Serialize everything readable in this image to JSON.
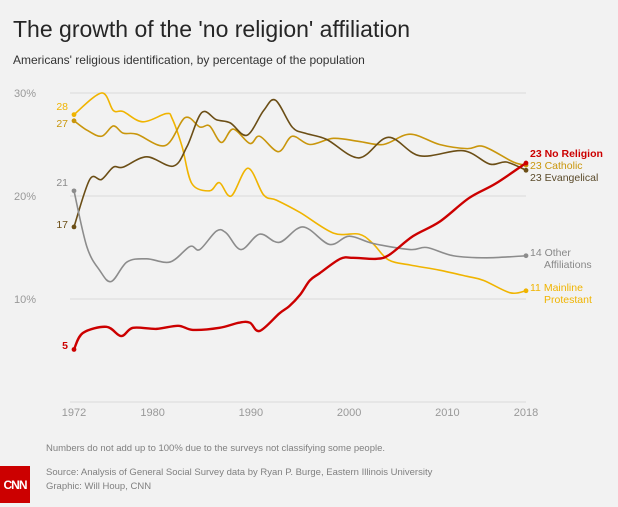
{
  "chart_data": {
    "type": "line",
    "title": "The growth of the 'no religion' affiliation",
    "subtitle": "Americans' religious identification, by percentage of the population",
    "xlabel": "",
    "ylabel": "",
    "xlim": [
      1972,
      2018
    ],
    "ylim": [
      0,
      30
    ],
    "x_ticks": [
      "1972",
      "1980",
      "1990",
      "2000",
      "2010",
      "2018"
    ],
    "x_tick_values": [
      1972,
      1980,
      1990,
      2000,
      2010,
      2018
    ],
    "y_ticks": [
      "30%",
      "20%",
      "10%"
    ],
    "y_tick_values": [
      30,
      20,
      10
    ],
    "grid": true,
    "series": [
      {
        "name": "Mainline Protestant",
        "color": "#f0b400",
        "start_label": "28",
        "end_label": [
          "11 Mainline",
          "Protestant"
        ],
        "x": [
          1972,
          1974.8,
          1976,
          1977,
          1979,
          1981.4,
          1982,
          1983,
          1984,
          1985.8,
          1986.8,
          1988,
          1989.7,
          1991.3,
          1992.6,
          1995,
          1998.4,
          2001,
          2002.4,
          2004,
          2006.2,
          2009.2,
          2012,
          2013.7,
          2016.4,
          2018
        ],
        "y": [
          27.9,
          30.0,
          28.3,
          28.2,
          27.2,
          28.0,
          27.5,
          24.8,
          21.2,
          20.5,
          21.3,
          20.0,
          22.7,
          20.1,
          19.6,
          18.4,
          16.4,
          16.3,
          15.4,
          13.8,
          13.3,
          12.8,
          12.2,
          11.8,
          10.6,
          10.8
        ]
      },
      {
        "name": "Catholic",
        "color": "#c9960c",
        "start_label": "27",
        "end_label": [
          "23 Catholic"
        ],
        "x": [
          1972,
          1973.3,
          1974.8,
          1976,
          1977,
          1978.4,
          1981.3,
          1983.3,
          1984.8,
          1985.8,
          1987,
          1988.2,
          1989.9,
          1990.9,
          1992.8,
          1994.2,
          1996,
          1998.4,
          2001,
          2003.5,
          2006.2,
          2009.2,
          2012,
          2013.7,
          2016.7,
          2018
        ],
        "y": [
          27.3,
          26.4,
          25.8,
          26.8,
          26.1,
          26.0,
          24.9,
          27.6,
          26.7,
          26.8,
          25.2,
          26.5,
          25.1,
          25.8,
          24.3,
          25.8,
          25.0,
          25.6,
          25.3,
          25.0,
          26.0,
          25.0,
          24.6,
          24.8,
          23.3,
          23.0
        ]
      },
      {
        "name": "Evangelical",
        "color": "#6b4e16",
        "start_label": "17",
        "end_label": [
          "23 Evangelical"
        ],
        "x": [
          1972,
          1973.6,
          1974.8,
          1976,
          1977,
          1979.4,
          1982.1,
          1983.5,
          1985,
          1986.5,
          1987.9,
          1989.6,
          1991.3,
          1992.5,
          1994.2,
          1995.5,
          1997.7,
          2001,
          2004,
          2007.2,
          2011.6,
          2014.3,
          2016,
          2018
        ],
        "y": [
          17.0,
          21.6,
          21.6,
          22.8,
          22.8,
          23.8,
          22.9,
          24.8,
          28.1,
          27.4,
          27.1,
          25.9,
          28.3,
          29.3,
          26.7,
          26.1,
          25.5,
          23.7,
          25.7,
          23.9,
          24.4,
          23.1,
          23.3,
          22.5
        ]
      },
      {
        "name": "Other Affiliations",
        "color": "#8c8c8c",
        "start_label": "21",
        "end_label": [
          "14 Other",
          "Affiliations"
        ],
        "x": [
          1972,
          1973.3,
          1974.6,
          1975.8,
          1977.4,
          1979.4,
          1981.8,
          1983.8,
          1984.8,
          1986.5,
          1987.5,
          1989,
          1990.9,
          1992.9,
          1995.3,
          1998,
          2000,
          2002.4,
          2006.2,
          2007.9,
          2010.6,
          2014,
          2018
        ],
        "y": [
          20.5,
          15.1,
          12.8,
          11.7,
          13.6,
          13.9,
          13.6,
          15.1,
          14.8,
          16.6,
          16.4,
          14.8,
          16.3,
          15.5,
          17.0,
          15.3,
          16.1,
          15.4,
          14.8,
          15.0,
          14.2,
          14.0,
          14.2
        ]
      },
      {
        "name": "No Religion",
        "color": "#cc0000",
        "start_label": "5",
        "end_label": [
          "23 No Religion"
        ],
        "x": [
          1972,
          1972.9,
          1975.3,
          1976.8,
          1978,
          1980.4,
          1982.6,
          1984.1,
          1986.8,
          1988.8,
          1989.9,
          1990.9,
          1992.9,
          1993.9,
          1995,
          1996,
          1997,
          1999.1,
          2000.4,
          2002.8,
          2004.1,
          2006.5,
          2009.2,
          2012.2,
          2014.9,
          2018
        ],
        "y": [
          5.1,
          6.7,
          7.3,
          6.4,
          7.2,
          7.1,
          7.4,
          7.0,
          7.2,
          7.7,
          7.7,
          6.9,
          8.6,
          9.3,
          10.4,
          11.8,
          12.5,
          13.9,
          14.0,
          13.9,
          14.3,
          16.1,
          17.5,
          19.8,
          21.2,
          23.2
        ]
      }
    ]
  },
  "notes": {
    "disclaimer": "Numbers do not add up to 100% due to the surveys not classifying some people.",
    "source": "Source: Analysis of General Social Survey data by Ryan P. Burge, Eastern Illinois University",
    "credit": "Graphic: Will Houp, CNN"
  },
  "logo": {
    "text": "CNN",
    "color": "#cc0000"
  }
}
